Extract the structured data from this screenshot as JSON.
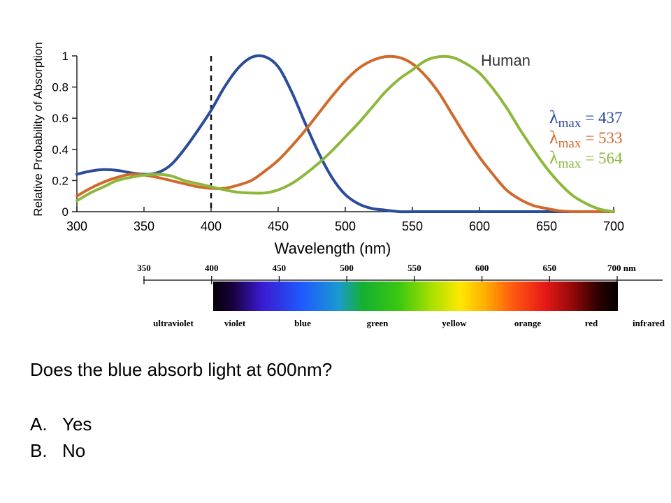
{
  "chart_data": {
    "type": "line",
    "annotation": "Human",
    "xlabel": "Wavelength (nm)",
    "ylabel": "Relative Probability of Absorption",
    "xlim": [
      300,
      700
    ],
    "ylim": [
      0,
      1
    ],
    "x_ticks": [
      "300",
      "350",
      "400",
      "450",
      "500",
      "550",
      "600",
      "650",
      "700"
    ],
    "y_ticks": [
      "0",
      "0.2",
      "0.4",
      "0.6",
      "0.8",
      "1"
    ],
    "reference_line_x": 400,
    "x": [
      300,
      310,
      320,
      330,
      340,
      350,
      360,
      370,
      380,
      390,
      400,
      410,
      420,
      430,
      440,
      450,
      460,
      470,
      480,
      490,
      500,
      510,
      520,
      530,
      540,
      550,
      560,
      570,
      580,
      590,
      600,
      610,
      620,
      630,
      640,
      650,
      660,
      670,
      680,
      690,
      700
    ],
    "series": [
      {
        "lambda_label": "λ",
        "lambda_sub": "max",
        "lambda_value": "= 437",
        "color": "#2a4c9a",
        "values": [
          0.24,
          0.26,
          0.27,
          0.265,
          0.25,
          0.24,
          0.25,
          0.3,
          0.4,
          0.52,
          0.65,
          0.8,
          0.92,
          0.99,
          0.995,
          0.93,
          0.77,
          0.57,
          0.38,
          0.22,
          0.11,
          0.05,
          0.02,
          0.01,
          0,
          0,
          0,
          0,
          0,
          0,
          0,
          0,
          0,
          0,
          0,
          0,
          0,
          0,
          0,
          0,
          0
        ]
      },
      {
        "lambda_label": "λ",
        "lambda_sub": "max",
        "lambda_value": "= 533",
        "color": "#d06a2c",
        "values": [
          0.1,
          0.15,
          0.19,
          0.22,
          0.24,
          0.235,
          0.22,
          0.2,
          0.18,
          0.16,
          0.15,
          0.15,
          0.17,
          0.2,
          0.26,
          0.33,
          0.42,
          0.52,
          0.63,
          0.74,
          0.84,
          0.92,
          0.97,
          0.995,
          0.99,
          0.95,
          0.87,
          0.76,
          0.62,
          0.48,
          0.35,
          0.24,
          0.14,
          0.08,
          0.04,
          0.02,
          0.005,
          0,
          0,
          0,
          0
        ]
      },
      {
        "lambda_label": "λ",
        "lambda_sub": "max",
        "lambda_value": "= 564",
        "color": "#8db83c",
        "values": [
          0.07,
          0.12,
          0.16,
          0.2,
          0.22,
          0.235,
          0.24,
          0.23,
          0.2,
          0.18,
          0.16,
          0.14,
          0.125,
          0.12,
          0.12,
          0.14,
          0.18,
          0.24,
          0.31,
          0.39,
          0.48,
          0.57,
          0.67,
          0.77,
          0.85,
          0.91,
          0.97,
          0.995,
          0.99,
          0.95,
          0.89,
          0.79,
          0.67,
          0.53,
          0.4,
          0.28,
          0.18,
          0.1,
          0.05,
          0.015,
          0
        ]
      }
    ]
  },
  "spectrum": {
    "scale_ticks": [
      "350",
      "400",
      "450",
      "500",
      "550",
      "600",
      "650",
      "700 nm"
    ],
    "bands": [
      "ultraviolet",
      "violet",
      "blue",
      "green",
      "yellow",
      "orange",
      "red",
      "infrared"
    ]
  },
  "question": {
    "text": "Does the blue absorb light at 600nm?",
    "options": [
      {
        "letter": "A.",
        "text": "Yes"
      },
      {
        "letter": "B.",
        "text": "No"
      }
    ]
  }
}
